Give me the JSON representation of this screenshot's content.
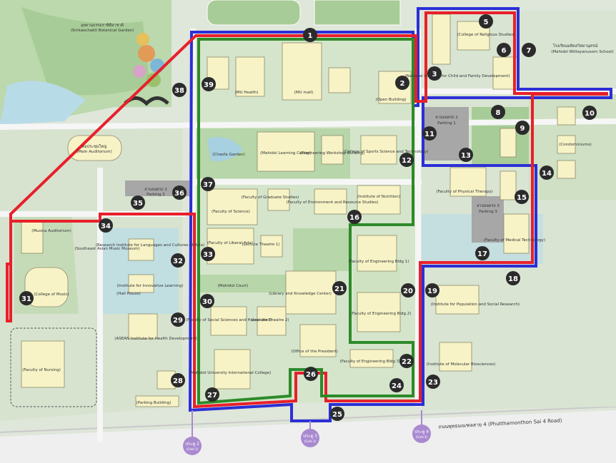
{
  "colors": {
    "route_blue": "#2b2fd6",
    "route_red": "#e8202b",
    "route_green": "#2e8a2a",
    "marker_fill": "#2b2b2b",
    "marker_text": "#ffffff",
    "gate_fill": "#a98ad0",
    "building_fill": "#f7f3c6",
    "grass": "#b7d6a9",
    "water": "#b8dbe8",
    "road": "#f4f4f4",
    "parking": "#a7a7a7"
  },
  "markers": {
    "m1": "1",
    "m2": "2",
    "m3": "3",
    "m5": "5",
    "m6": "6",
    "m7": "7",
    "m8": "8",
    "m9": "9",
    "m10": "10",
    "m11": "11",
    "m12": "12",
    "m13": "13",
    "m14": "14",
    "m15": "15",
    "m16": "16",
    "m17": "17",
    "m18": "18",
    "m19": "19",
    "m20": "20",
    "m21": "21",
    "m22": "22",
    "m23": "23",
    "m24": "24",
    "m25": "25",
    "m26": "26",
    "m27": "27",
    "m28": "28",
    "m29": "29",
    "m30": "30",
    "m31": "31",
    "m32": "32",
    "m33": "33",
    "m34": "34",
    "m35": "35",
    "m36": "36",
    "m37": "37",
    "m38": "38",
    "m39": "39"
  },
  "labels": {
    "botanical_th": "อุทยานธรรมราชิศิลาชาติ",
    "botanical_en": "(Sirikaochakti Botanical Garden)",
    "auditorium_th": "หอประชุมใหญ่",
    "auditorium_en": "(Main Auditorium)",
    "college_religious": "(College of Religious Studies)",
    "nat_inst_child": "(National Institute for Child and Family Development)",
    "wittayanusorn_th": "โรงเรียนมหิดลวิทยานุสรณ์",
    "wittayanusorn_en": "(Mahidol Wittayanusorn School)",
    "mu_health": "(MU Health)",
    "mu_mall": "(MU mall)",
    "open_building": "(Open Building)",
    "parking1_th": "ลานจอดรถ 1",
    "parking1_en": "Parking 1",
    "sports_science": "(College of Sports Science and Technology)",
    "condominiums": "(Condominiums)",
    "chaofa_garden": "(Chaofa Garden)",
    "learning_center": "(Mahidol Learning Center)",
    "engineering_workshop": "(Engineering Workshop Building)",
    "parking2_th": "ลานจอดรถ 2",
    "parking2_en": "Parking 2",
    "graduate_studies": "(Faculty of Graduate Studies)",
    "environment": "(Faculty of Environment and Resource Studies)",
    "nutrition": "(Institute of Nutrition)",
    "physical_therapy": "(Faculty of Physical Therapy)",
    "parking3_th": "ลานจอดรถ 3",
    "parking3_en": "Parking 3",
    "medical_technology": "(Faculty of Medical Technology)",
    "science": "(Faculty of Science)",
    "liberal_arts": "(Faculty of Liberal Arts)",
    "lecture1": "(Lecture Theatre 1)",
    "music_auditorium": "(Musica Auditorium)",
    "se_asian_music": "(Southeast Asian Music Museum)",
    "languages_inst": "(Research Institute for Languages and Cultures of Asia)",
    "innovative_learning": "(Institute for Innovative Learning)",
    "hall_house": "(Hall House)",
    "college_music": "(College of Music)",
    "mahidol_court": "(Mahidol Court)",
    "library": "(Library and Knowledge Center)",
    "eng_bldg1": "(Faculty of Engineering Bldg 1)",
    "eng_bldg2": "(Faculty of Engineering Bldg 2)",
    "population_inst": "(Institute for Population and Social Research)",
    "social_sciences": "(Faculty of Social Sciences and Humanities)",
    "lecture2": "(Lecture Theatre 2)",
    "asean_inst": "(ASEAN Institute for Health Development)",
    "presidents_office": "(Office of the President)",
    "eng_bldg3": "(Faculty of Engineering Bldg 3)",
    "molecular": "(Institute of Molecular Biosciences)",
    "international_college": "(Mahidol University International College)",
    "nursing": "(Faculty of Nursing)",
    "parking_building": "(Parking Building)",
    "road": "ถนนพุทธมณฑลสาย 4 (Phutthamonthon Sai 4 Road)",
    "gate2": "ประตู 2",
    "gate2_en": "(Gate 2)",
    "gate3": "ประตู 3",
    "gate3_en": "(Gate 3)",
    "gate4": "ประตู 4",
    "gate4_en": "(Gate 4)"
  }
}
